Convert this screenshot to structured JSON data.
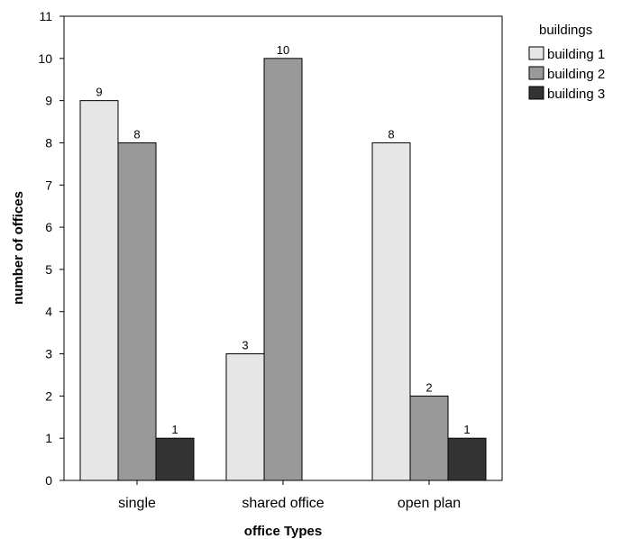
{
  "chart_data": {
    "type": "bar",
    "title": "",
    "xlabel": "office Types",
    "ylabel": "number of offices",
    "categories": [
      "single",
      "shared office",
      "open plan"
    ],
    "series": [
      {
        "name": "building 1",
        "values": [
          9,
          3,
          8
        ],
        "color": "#e6e6e6"
      },
      {
        "name": "building 2",
        "values": [
          8,
          10,
          2
        ],
        "color": "#999999"
      },
      {
        "name": "building 3",
        "values": [
          1,
          null,
          1
        ],
        "color": "#333333"
      }
    ],
    "ylim": [
      0,
      11
    ],
    "yticks": [
      0,
      1,
      2,
      3,
      4,
      5,
      6,
      7,
      8,
      9,
      10,
      11
    ],
    "data_labels": true,
    "grid": false,
    "legend": {
      "title": "buildings",
      "placement": "top-right, outside plot"
    }
  }
}
